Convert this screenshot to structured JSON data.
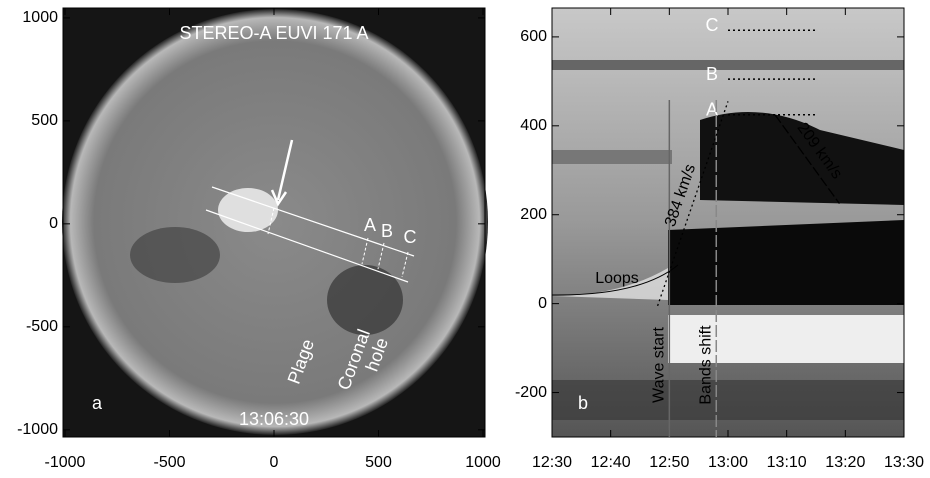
{
  "chart_data": [
    {
      "type": "image",
      "title": "STEREO-A EUVI 171 A",
      "timestamp": "13:06:30",
      "panel_label": "a",
      "xlim": [
        -1000,
        1000
      ],
      "ylim": [
        -1035,
        1048
      ],
      "xticks": [
        -1000,
        -500,
        0,
        500,
        1000
      ],
      "yticks": [
        -1000,
        -500,
        0,
        500,
        1000
      ],
      "annotations": [
        "A",
        "B",
        "C",
        "Plage",
        "Coronal",
        "hole"
      ]
    },
    {
      "type": "timedistance",
      "panel_label": "b",
      "xlim": [
        "12:30",
        "13:30"
      ],
      "ylim": [
        -300,
        665
      ],
      "xticks": [
        "12:30",
        "12:40",
        "12:50",
        "13:00",
        "13:10",
        "13:20",
        "13:30"
      ],
      "yticks": [
        -200,
        0,
        200,
        400,
        600
      ],
      "levels": [
        {
          "name": "C",
          "y": 615,
          "x": [
            "13:00",
            "13:15"
          ]
        },
        {
          "name": "B",
          "y": 505,
          "x": [
            "13:00",
            "13:15"
          ]
        },
        {
          "name": "A",
          "y": 425,
          "x": [
            "13:00",
            "13:15"
          ]
        }
      ],
      "markers": [
        {
          "label": "Wave start",
          "x": "12:50"
        },
        {
          "label": "Bands shift",
          "x": "12:58"
        }
      ],
      "speeds": [
        {
          "label": "384 km/s",
          "x": [
            "12:48",
            "13:00"
          ],
          "y": [
            -5,
            455
          ]
        },
        {
          "label": "209 km/s",
          "x": [
            "13:08",
            "13:19"
          ],
          "y": [
            425,
            225
          ]
        }
      ],
      "loops_label": "Loops"
    }
  ]
}
